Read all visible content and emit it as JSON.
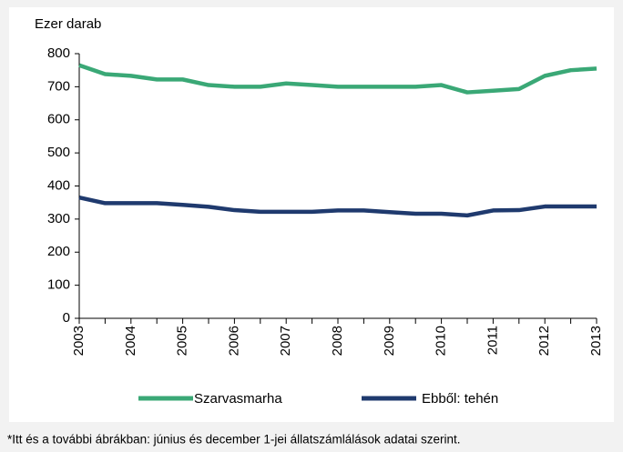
{
  "chart_data": {
    "type": "line",
    "y_axis_label": "Ezer darab",
    "x": [
      2003,
      2003.5,
      2004,
      2004.5,
      2005,
      2005.5,
      2006,
      2006.5,
      2007,
      2007.5,
      2008,
      2008.5,
      2009,
      2009.5,
      2010,
      2010.5,
      2011,
      2011.5,
      2012,
      2012.5,
      2013
    ],
    "series": [
      {
        "name": "Szarvasmarha",
        "color": "#3aa876",
        "values": [
          765,
          738,
          733,
          722,
          722,
          705,
          700,
          700,
          710,
          705,
          700,
          700,
          700,
          700,
          705,
          683,
          688,
          693,
          733,
          750,
          755
        ]
      },
      {
        "name": "Ebből: tehén",
        "color": "#1f3a6e",
        "values": [
          365,
          348,
          348,
          348,
          343,
          337,
          327,
          322,
          322,
          322,
          326,
          326,
          321,
          316,
          316,
          311,
          326,
          327,
          338,
          338,
          338
        ]
      }
    ],
    "xlim": [
      2003,
      2013
    ],
    "xticks": [
      2003,
      2004,
      2005,
      2006,
      2007,
      2008,
      2009,
      2010,
      2011,
      2012,
      2013
    ],
    "ylim": [
      0,
      800
    ],
    "yticks": [
      0,
      100,
      200,
      300,
      400,
      500,
      600,
      700,
      800
    ],
    "grid": false,
    "footnote": "*Itt és a további ábrákban: június és december 1-jei állatszámlálások adatai szerint."
  }
}
